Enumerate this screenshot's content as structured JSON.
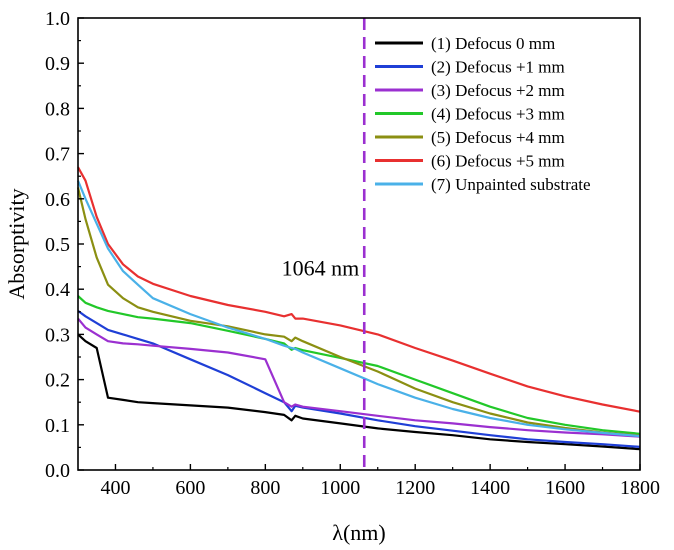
{
  "chart_data": {
    "type": "line",
    "title": "",
    "xlabel": "λ(nm)",
    "ylabel": "Absorptivity",
    "xlim": [
      300,
      1800
    ],
    "ylim": [
      0.0,
      1.0
    ],
    "x_ticks": [
      "400",
      "600",
      "800",
      "1000",
      "1200",
      "1400",
      "1600",
      "1800"
    ],
    "y_ticks": [
      "0.0",
      "0.1",
      "0.2",
      "0.3",
      "0.4",
      "0.5",
      "0.6",
      "0.7",
      "0.8",
      "0.9",
      "1.0"
    ],
    "grid": false,
    "legend_position": "top-right",
    "annotations": [
      {
        "text": "1064 nm",
        "x": 1064,
        "type": "vertical-dashed-line",
        "color": "#9b30d0"
      }
    ],
    "series": [
      {
        "name": "(1) Defocus 0 mm",
        "color": "#000000",
        "x": [
          300,
          320,
          350,
          380,
          420,
          460,
          500,
          600,
          700,
          800,
          850,
          870,
          880,
          900,
          1000,
          1100,
          1200,
          1300,
          1400,
          1500,
          1600,
          1700,
          1800
        ],
        "y": [
          0.3,
          0.285,
          0.27,
          0.16,
          0.155,
          0.15,
          0.148,
          0.143,
          0.138,
          0.128,
          0.122,
          0.11,
          0.12,
          0.114,
          0.103,
          0.092,
          0.084,
          0.077,
          0.068,
          0.062,
          0.057,
          0.052,
          0.046
        ]
      },
      {
        "name": "(2) Defocus +1 mm",
        "color": "#1f3fd6",
        "x": [
          300,
          320,
          350,
          380,
          420,
          460,
          500,
          600,
          700,
          800,
          850,
          870,
          880,
          900,
          1000,
          1100,
          1200,
          1300,
          1400,
          1500,
          1600,
          1700,
          1800
        ],
        "y": [
          0.352,
          0.34,
          0.325,
          0.31,
          0.3,
          0.29,
          0.28,
          0.245,
          0.21,
          0.17,
          0.15,
          0.13,
          0.142,
          0.138,
          0.125,
          0.11,
          0.097,
          0.087,
          0.077,
          0.068,
          0.062,
          0.057,
          0.051
        ]
      },
      {
        "name": "(3) Defocus +2 mm",
        "color": "#9b30d0",
        "x": [
          300,
          320,
          350,
          380,
          420,
          460,
          500,
          600,
          700,
          800,
          850,
          870,
          880,
          900,
          1000,
          1100,
          1200,
          1300,
          1400,
          1500,
          1600,
          1700,
          1800
        ],
        "y": [
          0.335,
          0.315,
          0.3,
          0.285,
          0.28,
          0.278,
          0.275,
          0.268,
          0.26,
          0.245,
          0.15,
          0.14,
          0.145,
          0.14,
          0.13,
          0.12,
          0.11,
          0.103,
          0.095,
          0.088,
          0.083,
          0.079,
          0.074
        ]
      },
      {
        "name": "(4) Defocus +3 mm",
        "color": "#22c829",
        "x": [
          300,
          320,
          350,
          380,
          420,
          460,
          500,
          600,
          700,
          800,
          850,
          870,
          880,
          900,
          1000,
          1100,
          1200,
          1300,
          1400,
          1500,
          1600,
          1700,
          1800
        ],
        "y": [
          0.385,
          0.37,
          0.36,
          0.352,
          0.345,
          0.338,
          0.335,
          0.325,
          0.308,
          0.29,
          0.28,
          0.266,
          0.27,
          0.265,
          0.248,
          0.23,
          0.2,
          0.17,
          0.14,
          0.115,
          0.1,
          0.088,
          0.08
        ]
      },
      {
        "name": "(5) Defocus +4 mm",
        "color": "#8b8f12",
        "x": [
          300,
          320,
          350,
          380,
          420,
          460,
          500,
          600,
          700,
          800,
          850,
          870,
          880,
          900,
          1000,
          1100,
          1200,
          1300,
          1400,
          1500,
          1600,
          1700,
          1800
        ],
        "y": [
          0.625,
          0.555,
          0.47,
          0.41,
          0.38,
          0.36,
          0.35,
          0.33,
          0.318,
          0.3,
          0.295,
          0.285,
          0.293,
          0.285,
          0.25,
          0.218,
          0.18,
          0.15,
          0.125,
          0.105,
          0.093,
          0.083,
          0.076
        ]
      },
      {
        "name": "(6) Defocus +5 mm",
        "color": "#e83030",
        "x": [
          300,
          320,
          350,
          380,
          420,
          460,
          500,
          600,
          700,
          800,
          850,
          870,
          880,
          900,
          1000,
          1100,
          1200,
          1300,
          1400,
          1500,
          1600,
          1700,
          1800
        ],
        "y": [
          0.67,
          0.64,
          0.56,
          0.5,
          0.455,
          0.428,
          0.412,
          0.385,
          0.365,
          0.35,
          0.34,
          0.345,
          0.335,
          0.335,
          0.32,
          0.3,
          0.27,
          0.242,
          0.213,
          0.185,
          0.163,
          0.145,
          0.129
        ]
      },
      {
        "name": "(7) Unpainted substrate",
        "color": "#4ab1e8",
        "x": [
          300,
          320,
          350,
          380,
          420,
          460,
          500,
          600,
          700,
          800,
          850,
          870,
          880,
          900,
          1000,
          1100,
          1200,
          1300,
          1400,
          1500,
          1600,
          1700,
          1800
        ],
        "y": [
          0.64,
          0.6,
          0.545,
          0.49,
          0.44,
          0.41,
          0.38,
          0.345,
          0.315,
          0.29,
          0.275,
          0.27,
          0.268,
          0.26,
          0.225,
          0.19,
          0.16,
          0.135,
          0.115,
          0.1,
          0.09,
          0.082,
          0.075
        ]
      }
    ]
  }
}
